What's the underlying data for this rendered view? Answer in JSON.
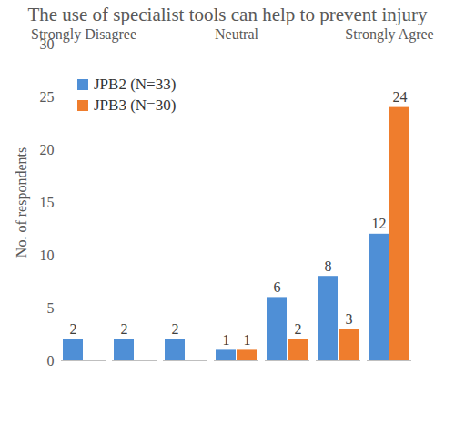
{
  "chart_data": {
    "type": "bar",
    "title": "The use of specialist tools can help to prevent injury",
    "y_label": "No. of respondents",
    "categories": [
      "Strongly Disagree",
      null,
      null,
      "Neutral",
      null,
      null,
      "Strongly Agree"
    ],
    "series": [
      {
        "name": "JPB2 (N=33)",
        "color": "#4f8fd6",
        "values": [
          2,
          2,
          2,
          1,
          6,
          8,
          12
        ]
      },
      {
        "name": "JPB3 (N=30)",
        "color": "#ef7d2d",
        "values": [
          null,
          null,
          null,
          1,
          2,
          3,
          24
        ]
      }
    ],
    "ylim": [
      0,
      30
    ],
    "yticks": [
      0,
      5,
      10,
      15,
      20,
      25,
      30
    ],
    "grid": false,
    "legend": "upper left",
    "data_labels": true
  }
}
